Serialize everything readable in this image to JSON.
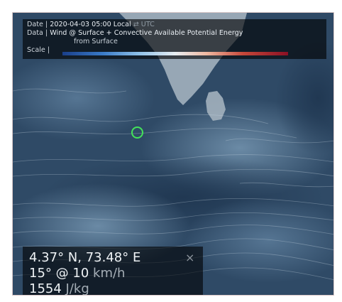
{
  "info": {
    "date_label": "Date |",
    "date_value": "2020-04-03 05:00 Local",
    "date_utc": "⇄ UTC",
    "data_label": "Data |",
    "data_value_line1": "Wind @ Surface + Convective Available Potential Energy",
    "data_value_line2": "from Surface",
    "scale_label": "Scale |"
  },
  "readout": {
    "coordinates": "4.37° N, 73.48° E",
    "close_symbol": "×",
    "wind_direction": "15°",
    "wind_at": "@",
    "wind_speed": "10",
    "wind_unit": "km/h",
    "cape_value": "1554",
    "cape_unit": "J/kg"
  },
  "colors": {
    "ocean": "#2f4a66",
    "land": "#9aa9b7",
    "marker": "#44e35a"
  },
  "icons": [
    "close-icon",
    "location-marker-icon"
  ]
}
